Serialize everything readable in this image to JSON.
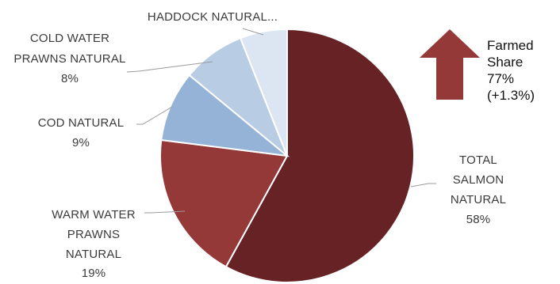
{
  "chart_data": {
    "type": "pie",
    "title": "",
    "slices": [
      {
        "label_lines": [
          "TOTAL",
          "SALMON",
          "NATURAL"
        ],
        "percent_label": "58%",
        "value": 58,
        "color": "#662224"
      },
      {
        "label_lines": [
          "WARM WATER",
          "PRAWNS",
          "NATURAL"
        ],
        "percent_label": "19%",
        "value": 19,
        "color": "#953838"
      },
      {
        "label_lines": [
          "COD NATURAL"
        ],
        "percent_label": "9%",
        "value": 9,
        "color": "#95b3d7"
      },
      {
        "label_lines": [
          "COLD WATER",
          "PRAWNS NATURAL"
        ],
        "percent_label": "8%",
        "value": 8,
        "color": "#b8cce4"
      },
      {
        "label_lines": [
          "HADDOCK NATURAL..."
        ],
        "percent_label": "",
        "value": 6,
        "color": "#dce6f2"
      }
    ],
    "start_angle_deg": 0,
    "direction": "clockwise",
    "legend": "none"
  },
  "annotation": {
    "lines": [
      "Farmed",
      "Share",
      "77%",
      "(+1.3%)"
    ],
    "arrow_icon": "up-arrow-icon",
    "arrow_color": "#953838"
  }
}
